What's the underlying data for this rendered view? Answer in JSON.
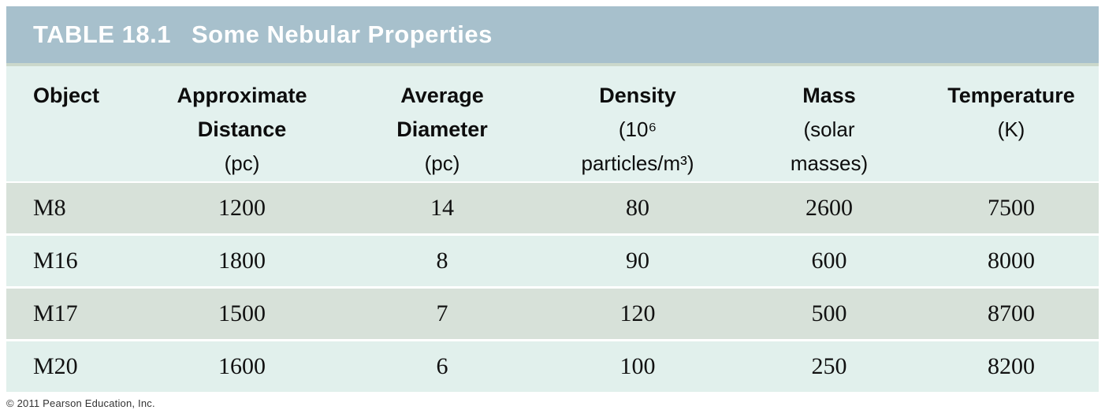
{
  "header": {
    "table_label": "TABLE 18.1",
    "table_title": "Some Nebular Properties"
  },
  "table": {
    "columns": [
      {
        "name": "Object",
        "unit_line1": "",
        "unit_line2": ""
      },
      {
        "name": "Approximate Distance",
        "unit_line1": "(pc)",
        "unit_line2": ""
      },
      {
        "name": "Average Diameter",
        "unit_line1": "(pc)",
        "unit_line2": ""
      },
      {
        "name": "Density",
        "unit_line1": "(10⁶",
        "unit_line2": "particles/m³)"
      },
      {
        "name": "Mass",
        "unit_line1": "(solar",
        "unit_line2": "masses)"
      },
      {
        "name": "Temperature",
        "unit_line1": "(K)",
        "unit_line2": ""
      }
    ],
    "rows": [
      {
        "cells": [
          "M8",
          "1200",
          "14",
          "80",
          "2600",
          "7500"
        ]
      },
      {
        "cells": [
          "M16",
          "1800",
          "8",
          "90",
          "600",
          "8000"
        ]
      },
      {
        "cells": [
          "M17",
          "1500",
          "7",
          "120",
          "500",
          "8700"
        ]
      },
      {
        "cells": [
          "M20",
          "1600",
          "6",
          "100",
          "250",
          "8200"
        ]
      }
    ]
  },
  "footer": {
    "copyright": "© 2011 Pearson Education, Inc."
  },
  "colors": {
    "title_bar": "#a7c0cc",
    "title_text": "#ffffff",
    "separator_strip": "#cbd8cb",
    "header_row_bg": "#e3f1ee",
    "row_odd_bg": "#d7e1d9",
    "row_even_bg": "#e1f0ec",
    "row_gap": "#ffffff",
    "text": "#111111"
  }
}
